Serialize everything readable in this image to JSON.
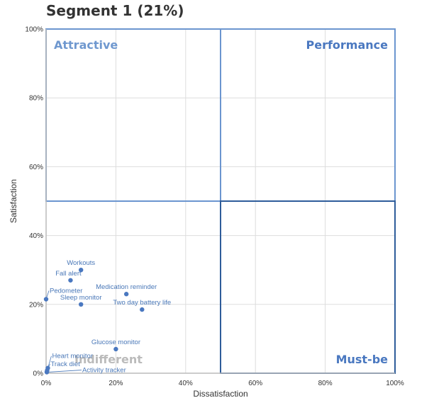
{
  "title": "Segment 1 (21%)",
  "colors": {
    "quadrant_border": "#6b95cf",
    "must_be_border": "#2e5c9a",
    "point": "#4a78c0",
    "label": "#4a78b8",
    "quadrant_label": "#6f98cf",
    "performance_label": "#4a78c0",
    "indifferent_label": "#bbbbbb",
    "grid": "#dddddd",
    "axis": "#bbbbbb"
  },
  "chart_data": {
    "type": "scatter",
    "xlabel": "Dissatisfaction",
    "ylabel": "Satisfaction",
    "xlim": [
      0,
      100
    ],
    "ylim": [
      0,
      100
    ],
    "x_ticks": [
      "0%",
      "20%",
      "40%",
      "60%",
      "80%",
      "100%"
    ],
    "y_ticks": [
      "0%",
      "20%",
      "40%",
      "60%",
      "80%",
      "100%"
    ],
    "grid": true,
    "quadrant_labels": {
      "top_left": "Attractive",
      "top_right": "Performance",
      "bottom_left": "Indifferent",
      "bottom_right": "Must-be"
    },
    "points": [
      {
        "label": "Workouts",
        "x": 10,
        "y": 30
      },
      {
        "label": "Fall alert",
        "x": 7,
        "y": 27
      },
      {
        "label": "Medication reminder",
        "x": 23,
        "y": 23
      },
      {
        "label": "Pedometer",
        "x": 0,
        "y": 21.5
      },
      {
        "label": "Sleep monitor",
        "x": 10,
        "y": 20
      },
      {
        "label": "Two day battery life",
        "x": 27.5,
        "y": 18.5
      },
      {
        "label": "Glucose monitor",
        "x": 20,
        "y": 7
      },
      {
        "label": "Heart monitor",
        "x": 0.5,
        "y": 1.5
      },
      {
        "label": "Track diet",
        "x": 0.3,
        "y": 0.8
      },
      {
        "label": "Activity tracker",
        "x": 0.2,
        "y": 0.3
      }
    ]
  }
}
